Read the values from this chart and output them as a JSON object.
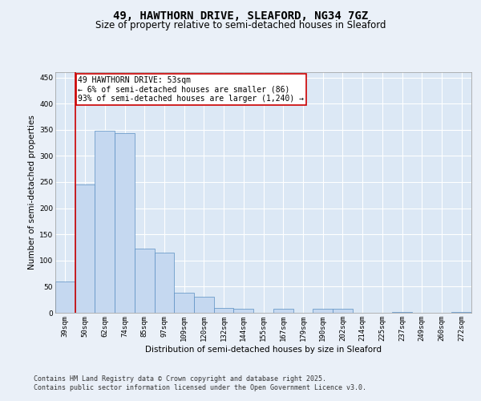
{
  "title_line1": "49, HAWTHORN DRIVE, SLEAFORD, NG34 7GZ",
  "title_line2": "Size of property relative to semi-detached houses in Sleaford",
  "xlabel": "Distribution of semi-detached houses by size in Sleaford",
  "ylabel": "Number of semi-detached properties",
  "categories": [
    "39sqm",
    "50sqm",
    "62sqm",
    "74sqm",
    "85sqm",
    "97sqm",
    "109sqm",
    "120sqm",
    "132sqm",
    "144sqm",
    "155sqm",
    "167sqm",
    "179sqm",
    "190sqm",
    "202sqm",
    "214sqm",
    "225sqm",
    "237sqm",
    "249sqm",
    "260sqm",
    "272sqm"
  ],
  "values": [
    60,
    245,
    348,
    343,
    122,
    115,
    38,
    30,
    9,
    7,
    0,
    7,
    0,
    8,
    7,
    0,
    0,
    2,
    0,
    0,
    2
  ],
  "bar_color": "#c5d8f0",
  "bar_edge_color": "#5a8fc2",
  "vline_x_index": 1,
  "vline_color": "#cc0000",
  "annotation_text": "49 HAWTHORN DRIVE: 53sqm\n← 6% of semi-detached houses are smaller (86)\n93% of semi-detached houses are larger (1,240) →",
  "annotation_box_color": "#ffffff",
  "annotation_box_edge": "#cc0000",
  "ylim": [
    0,
    460
  ],
  "yticks": [
    0,
    50,
    100,
    150,
    200,
    250,
    300,
    350,
    400,
    450
  ],
  "bg_color": "#eaf0f8",
  "plot_bg_color": "#dce8f5",
  "grid_color": "#ffffff",
  "footer_text": "Contains HM Land Registry data © Crown copyright and database right 2025.\nContains public sector information licensed under the Open Government Licence v3.0.",
  "title_fontsize": 10,
  "subtitle_fontsize": 8.5,
  "axis_label_fontsize": 7.5,
  "tick_fontsize": 6.5,
  "annotation_fontsize": 7,
  "footer_fontsize": 6
}
